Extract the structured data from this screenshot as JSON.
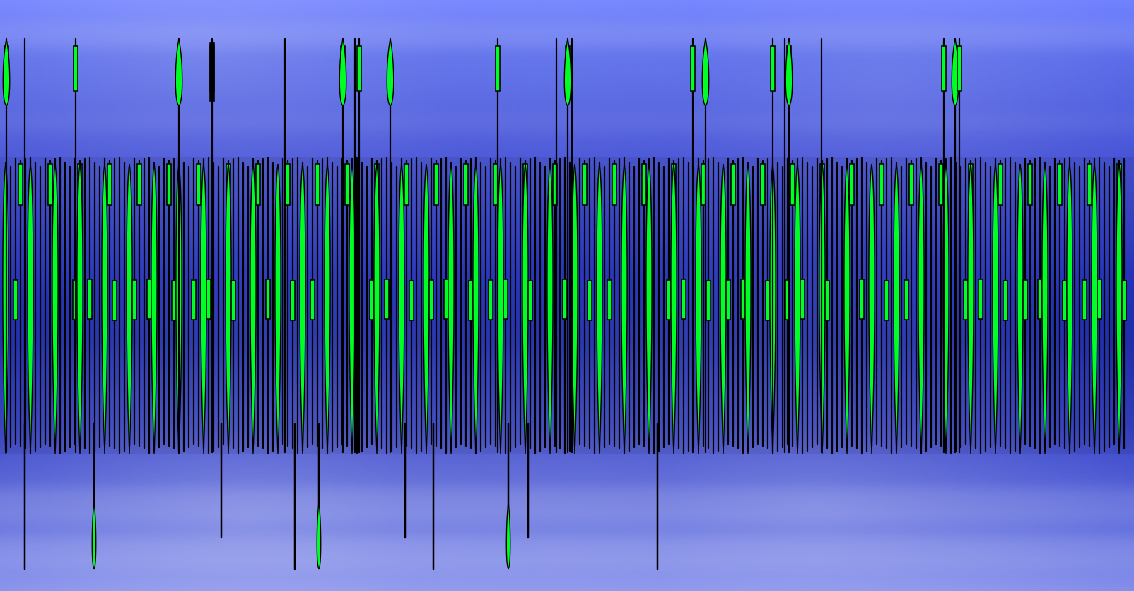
{
  "scene": {
    "background_palette": {
      "sky_top": "#6678ff",
      "sky_mid": "#2433c4",
      "sky_bottom": "#7e89ea",
      "bar_fill": "#00ff22",
      "bar_stroke": "#000000"
    },
    "icons": [
      "bar-pattern-icon",
      "cloud-texture-icon"
    ]
  }
}
